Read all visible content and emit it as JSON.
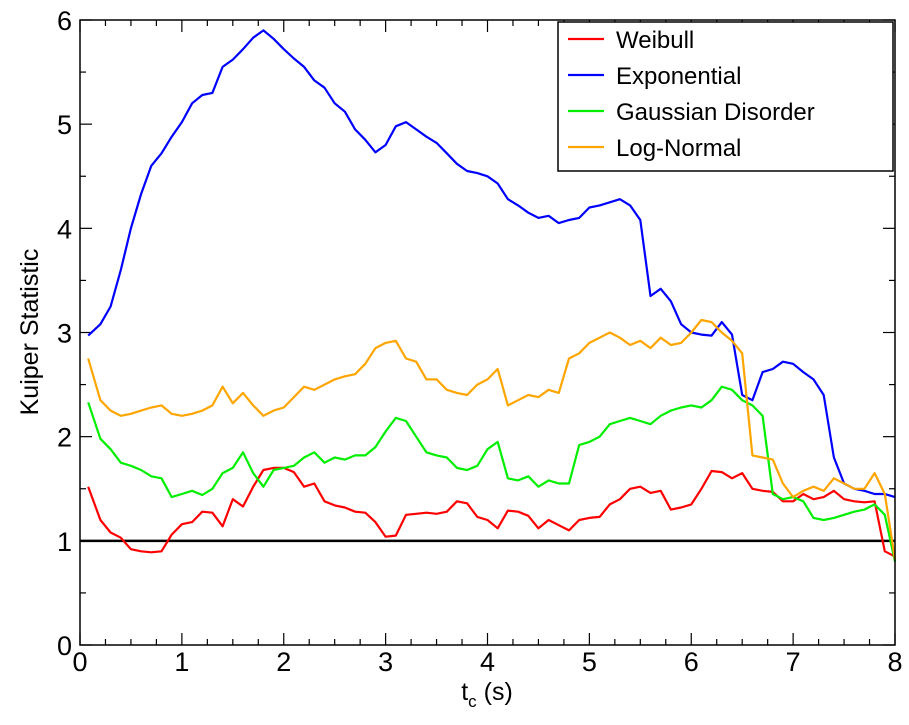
{
  "chart_data": {
    "type": "line",
    "xlabel": "t",
    "xlabel_subscript": "c",
    "xlabel_unit": " (s)",
    "ylabel": "Kuiper Statistic",
    "xlim": [
      0,
      8
    ],
    "ylim": [
      0,
      6
    ],
    "x_ticks": [
      "0",
      "1",
      "2",
      "3",
      "4",
      "5",
      "6",
      "7",
      "8"
    ],
    "y_ticks": [
      "0",
      "1",
      "2",
      "3",
      "4",
      "5",
      "6"
    ],
    "grid": false,
    "legend_position": "top-right",
    "reference_line": {
      "y": 1,
      "color": "#000000"
    },
    "series": [
      {
        "name": "Weibull",
        "color": "#ff0000",
        "x": [
          0.08,
          0.2,
          0.3,
          0.4,
          0.5,
          0.6,
          0.7,
          0.8,
          0.9,
          1.0,
          1.1,
          1.2,
          1.3,
          1.4,
          1.5,
          1.6,
          1.7,
          1.8,
          1.9,
          2.0,
          2.1,
          2.2,
          2.3,
          2.4,
          2.5,
          2.6,
          2.7,
          2.8,
          2.9,
          3.0,
          3.1,
          3.2,
          3.3,
          3.4,
          3.5,
          3.6,
          3.7,
          3.8,
          3.9,
          4.0,
          4.1,
          4.2,
          4.3,
          4.4,
          4.5,
          4.6,
          4.7,
          4.8,
          4.9,
          5.0,
          5.1,
          5.2,
          5.3,
          5.4,
          5.5,
          5.6,
          5.7,
          5.8,
          5.9,
          6.0,
          6.1,
          6.2,
          6.3,
          6.4,
          6.5,
          6.6,
          6.7,
          6.8,
          6.9,
          7.0,
          7.1,
          7.2,
          7.3,
          7.4,
          7.5,
          7.6,
          7.7,
          7.8,
          7.9,
          8.0
        ],
        "y": [
          1.52,
          1.2,
          1.08,
          1.03,
          0.92,
          0.9,
          0.89,
          0.9,
          1.06,
          1.16,
          1.18,
          1.28,
          1.27,
          1.14,
          1.4,
          1.33,
          1.52,
          1.68,
          1.7,
          1.7,
          1.66,
          1.52,
          1.55,
          1.38,
          1.34,
          1.32,
          1.28,
          1.27,
          1.18,
          1.04,
          1.05,
          1.25,
          1.26,
          1.27,
          1.26,
          1.28,
          1.38,
          1.36,
          1.23,
          1.2,
          1.12,
          1.29,
          1.28,
          1.24,
          1.12,
          1.2,
          1.15,
          1.1,
          1.2,
          1.22,
          1.23,
          1.35,
          1.4,
          1.5,
          1.52,
          1.46,
          1.48,
          1.3,
          1.32,
          1.35,
          1.5,
          1.67,
          1.66,
          1.6,
          1.65,
          1.5,
          1.48,
          1.47,
          1.38,
          1.38,
          1.45,
          1.4,
          1.42,
          1.48,
          1.4,
          1.38,
          1.37,
          1.38,
          0.9,
          0.85
        ]
      },
      {
        "name": "Exponential",
        "color": "#0000ff",
        "x": [
          0.08,
          0.2,
          0.3,
          0.4,
          0.5,
          0.6,
          0.7,
          0.8,
          0.9,
          1.0,
          1.1,
          1.2,
          1.3,
          1.4,
          1.5,
          1.6,
          1.7,
          1.8,
          1.9,
          2.0,
          2.1,
          2.2,
          2.3,
          2.4,
          2.5,
          2.6,
          2.7,
          2.8,
          2.9,
          3.0,
          3.1,
          3.2,
          3.3,
          3.4,
          3.5,
          3.6,
          3.7,
          3.8,
          3.9,
          4.0,
          4.1,
          4.2,
          4.3,
          4.4,
          4.5,
          4.6,
          4.7,
          4.8,
          4.9,
          5.0,
          5.1,
          5.2,
          5.3,
          5.4,
          5.5,
          5.6,
          5.7,
          5.8,
          5.9,
          6.0,
          6.1,
          6.2,
          6.3,
          6.4,
          6.5,
          6.6,
          6.7,
          6.8,
          6.9,
          7.0,
          7.1,
          7.2,
          7.3,
          7.4,
          7.5,
          7.6,
          7.7,
          7.8,
          7.9,
          8.0
        ],
        "y": [
          2.97,
          3.08,
          3.25,
          3.6,
          4.0,
          4.33,
          4.6,
          4.72,
          4.88,
          5.02,
          5.2,
          5.28,
          5.3,
          5.55,
          5.62,
          5.72,
          5.83,
          5.9,
          5.82,
          5.72,
          5.63,
          5.55,
          5.42,
          5.35,
          5.2,
          5.12,
          4.95,
          4.85,
          4.73,
          4.8,
          4.98,
          5.02,
          4.95,
          4.88,
          4.82,
          4.72,
          4.62,
          4.55,
          4.53,
          4.5,
          4.43,
          4.28,
          4.22,
          4.15,
          4.1,
          4.12,
          4.05,
          4.08,
          4.1,
          4.2,
          4.22,
          4.25,
          4.28,
          4.22,
          4.08,
          3.35,
          3.42,
          3.3,
          3.08,
          3.0,
          2.98,
          2.97,
          3.1,
          2.98,
          2.4,
          2.35,
          2.62,
          2.65,
          2.72,
          2.7,
          2.62,
          2.55,
          2.4,
          1.8,
          1.55,
          1.5,
          1.48,
          1.45,
          1.45,
          1.42
        ]
      },
      {
        "name": "Gaussian Disorder",
        "color": "#00ee00",
        "x": [
          0.08,
          0.2,
          0.3,
          0.4,
          0.5,
          0.6,
          0.7,
          0.8,
          0.9,
          1.0,
          1.1,
          1.2,
          1.3,
          1.4,
          1.5,
          1.6,
          1.7,
          1.8,
          1.9,
          2.0,
          2.1,
          2.2,
          2.3,
          2.4,
          2.5,
          2.6,
          2.7,
          2.8,
          2.9,
          3.0,
          3.1,
          3.2,
          3.3,
          3.4,
          3.5,
          3.6,
          3.7,
          3.8,
          3.9,
          4.0,
          4.1,
          4.2,
          4.3,
          4.4,
          4.5,
          4.6,
          4.7,
          4.8,
          4.9,
          5.0,
          5.1,
          5.2,
          5.3,
          5.4,
          5.5,
          5.6,
          5.7,
          5.8,
          5.9,
          6.0,
          6.1,
          6.2,
          6.3,
          6.4,
          6.5,
          6.6,
          6.7,
          6.8,
          6.9,
          7.0,
          7.1,
          7.2,
          7.3,
          7.4,
          7.5,
          7.6,
          7.7,
          7.8,
          7.9,
          8.0
        ],
        "y": [
          2.33,
          1.98,
          1.88,
          1.75,
          1.72,
          1.68,
          1.62,
          1.6,
          1.42,
          1.45,
          1.48,
          1.44,
          1.5,
          1.65,
          1.7,
          1.85,
          1.65,
          1.52,
          1.68,
          1.7,
          1.72,
          1.8,
          1.85,
          1.75,
          1.8,
          1.78,
          1.82,
          1.82,
          1.9,
          2.05,
          2.18,
          2.15,
          2.0,
          1.85,
          1.82,
          1.8,
          1.7,
          1.68,
          1.72,
          1.88,
          1.95,
          1.6,
          1.58,
          1.62,
          1.52,
          1.58,
          1.55,
          1.55,
          1.92,
          1.95,
          2.0,
          2.12,
          2.15,
          2.18,
          2.15,
          2.12,
          2.2,
          2.25,
          2.28,
          2.3,
          2.28,
          2.35,
          2.48,
          2.45,
          2.35,
          2.3,
          2.2,
          1.45,
          1.4,
          1.42,
          1.38,
          1.22,
          1.2,
          1.22,
          1.25,
          1.28,
          1.3,
          1.35,
          1.25,
          0.8
        ]
      },
      {
        "name": "Log-Normal",
        "color": "#ffa500",
        "x": [
          0.08,
          0.2,
          0.3,
          0.4,
          0.5,
          0.6,
          0.7,
          0.8,
          0.9,
          1.0,
          1.1,
          1.2,
          1.3,
          1.4,
          1.5,
          1.6,
          1.7,
          1.8,
          1.9,
          2.0,
          2.1,
          2.2,
          2.3,
          2.4,
          2.5,
          2.6,
          2.7,
          2.8,
          2.9,
          3.0,
          3.1,
          3.2,
          3.3,
          3.4,
          3.5,
          3.6,
          3.7,
          3.8,
          3.9,
          4.0,
          4.1,
          4.2,
          4.3,
          4.4,
          4.5,
          4.6,
          4.7,
          4.8,
          4.9,
          5.0,
          5.1,
          5.2,
          5.3,
          5.4,
          5.5,
          5.6,
          5.7,
          5.8,
          5.9,
          6.0,
          6.1,
          6.2,
          6.3,
          6.4,
          6.5,
          6.6,
          6.7,
          6.8,
          6.9,
          7.0,
          7.1,
          7.2,
          7.3,
          7.4,
          7.5,
          7.6,
          7.7,
          7.8,
          7.9,
          8.0
        ],
        "y": [
          2.75,
          2.35,
          2.25,
          2.2,
          2.22,
          2.25,
          2.28,
          2.3,
          2.22,
          2.2,
          2.22,
          2.25,
          2.3,
          2.48,
          2.32,
          2.42,
          2.3,
          2.2,
          2.25,
          2.28,
          2.38,
          2.48,
          2.45,
          2.5,
          2.55,
          2.58,
          2.6,
          2.7,
          2.85,
          2.9,
          2.92,
          2.75,
          2.72,
          2.55,
          2.55,
          2.45,
          2.42,
          2.4,
          2.5,
          2.55,
          2.65,
          2.3,
          2.35,
          2.4,
          2.38,
          2.45,
          2.42,
          2.75,
          2.8,
          2.9,
          2.95,
          3.0,
          2.95,
          2.88,
          2.92,
          2.85,
          2.95,
          2.88,
          2.9,
          3.0,
          3.12,
          3.1,
          3.0,
          2.92,
          2.8,
          1.82,
          1.8,
          1.78,
          1.55,
          1.42,
          1.48,
          1.52,
          1.48,
          1.6,
          1.55,
          1.5,
          1.5,
          1.65,
          1.45,
          0.82
        ]
      }
    ]
  }
}
